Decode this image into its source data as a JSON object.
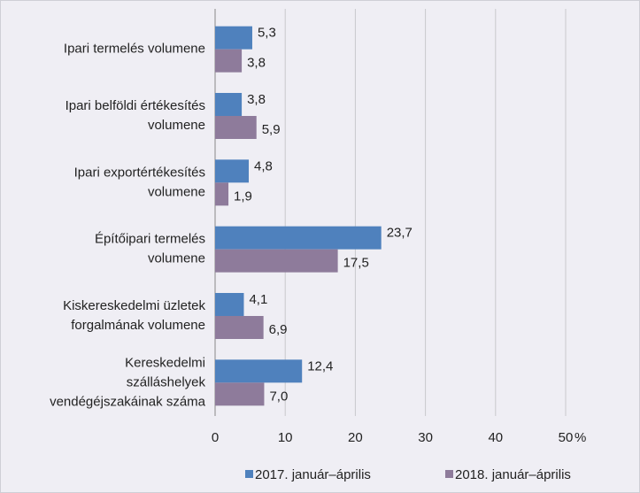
{
  "chart_data": {
    "type": "barh",
    "categories": [
      [
        "Ipari termelés volumene"
      ],
      [
        "Ipari belföldi értékesítés",
        "volumene"
      ],
      [
        "Ipari exportértékesítés",
        "volumene"
      ],
      [
        "Építőipari termelés",
        "volumene"
      ],
      [
        "Kiskereskedelmi üzletek",
        "forgalmának volumene"
      ],
      [
        "Kereskedelmi",
        "szálláshelyek",
        "vendégéjszakáinak száma"
      ]
    ],
    "series": [
      {
        "name": "2017. január–április",
        "color": "#4f81bd",
        "values": [
          5.3,
          3.8,
          4.8,
          23.7,
          4.1,
          12.4
        ],
        "value_labels": [
          "5,3",
          "3,8",
          "4,8",
          "23,7",
          "4,1",
          "12,4"
        ]
      },
      {
        "name": "2018. január–április",
        "color": "#8e7b9b",
        "values": [
          3.8,
          5.9,
          1.9,
          17.5,
          6.9,
          7.0
        ],
        "value_labels": [
          "3,8",
          "5,9",
          "1,9",
          "17,5",
          "6,9",
          "7,0"
        ]
      }
    ],
    "xlim": [
      0,
      50
    ],
    "xticks": [
      0,
      10,
      20,
      30,
      40,
      50
    ],
    "x_unit": "%",
    "grid": true,
    "legend": "bottom"
  }
}
